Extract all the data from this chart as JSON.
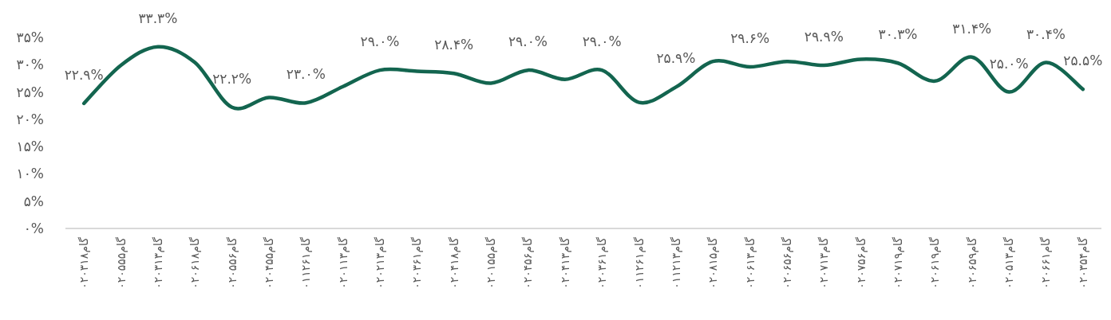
{
  "chart_data": {
    "type": "line",
    "categories": [
      "گام۰۲۰۳۱۸",
      "گام۰۲۰۵۵۵",
      "گام۰۲۰۳۱۳",
      "گام۰۲۰۶۱۸",
      "گام۰۲۰۵۵۶",
      "گام۰۲۰۴۵۵",
      "گام۰۱۱۲۶۱",
      "گام۰۲۰۱۱۳",
      "گام۰۲۰۲۱۳",
      "گام۰۲۰۳۶۱",
      "گام۰۲۰۴۱۸",
      "گام۰۲۰۱۵۵",
      "گام۰۲۰۴۵۶",
      "گام۰۲۰۴۱۳",
      "گام۰۲۰۳۶۱",
      "گام۰۱۱۲۶۱",
      "گام۰۱۱۲۱۳",
      "گام۰۲۰۸۱۵",
      "گام۰۲۰۶۱۳",
      "گام۰۲۰۶۵۶",
      "گام۰۲۰۷۱۳",
      "گام۰۲۰۷۵۶",
      "گام۰۲۰۷۱۹",
      "گام۰۲۰۶۱۹",
      "گام۰۲۰۶۵۹",
      "گام۰۲۰۵۱۳",
      "گام۰۲۰۶۶۱",
      "گام۰۲۰۳۵۴"
    ],
    "values": [
      22.9,
      29.9,
      33.3,
      30.4,
      22.2,
      24.0,
      23.0,
      26.0,
      29.0,
      28.8,
      28.4,
      26.6,
      29.0,
      27.3,
      29.0,
      23.1,
      25.9,
      30.6,
      29.6,
      30.6,
      29.9,
      31.0,
      30.3,
      27.0,
      31.4,
      25.0,
      30.4,
      25.5
    ],
    "value_labels": [
      "۲۲.۹%",
      null,
      "۳۳.۳%",
      null,
      "۲۲.۲%",
      null,
      "۲۳.۰%",
      null,
      "۲۹.۰%",
      null,
      "۲۸.۴%",
      null,
      "۲۹.۰%",
      null,
      "۲۹.۰%",
      null,
      "۲۵.۹%",
      null,
      "۲۹.۶%",
      null,
      "۲۹.۹%",
      null,
      "۳۰.۳%",
      null,
      "۳۱.۴%",
      "۲۵.۰%",
      "۳۰.۴%",
      "۲۵.۵%"
    ],
    "color": "#13654f",
    "ylim": [
      0,
      35
    ],
    "yticks": [
      {
        "value": 0,
        "label": "۰%"
      },
      {
        "value": 5,
        "label": "۵%"
      },
      {
        "value": 10,
        "label": "۱۰%"
      },
      {
        "value": 15,
        "label": "۱۵%"
      },
      {
        "value": 20,
        "label": "۲۰%"
      },
      {
        "value": 25,
        "label": "۲۵%"
      },
      {
        "value": 30,
        "label": "۳۰%"
      },
      {
        "value": 35,
        "label": "۳۵%"
      }
    ]
  }
}
